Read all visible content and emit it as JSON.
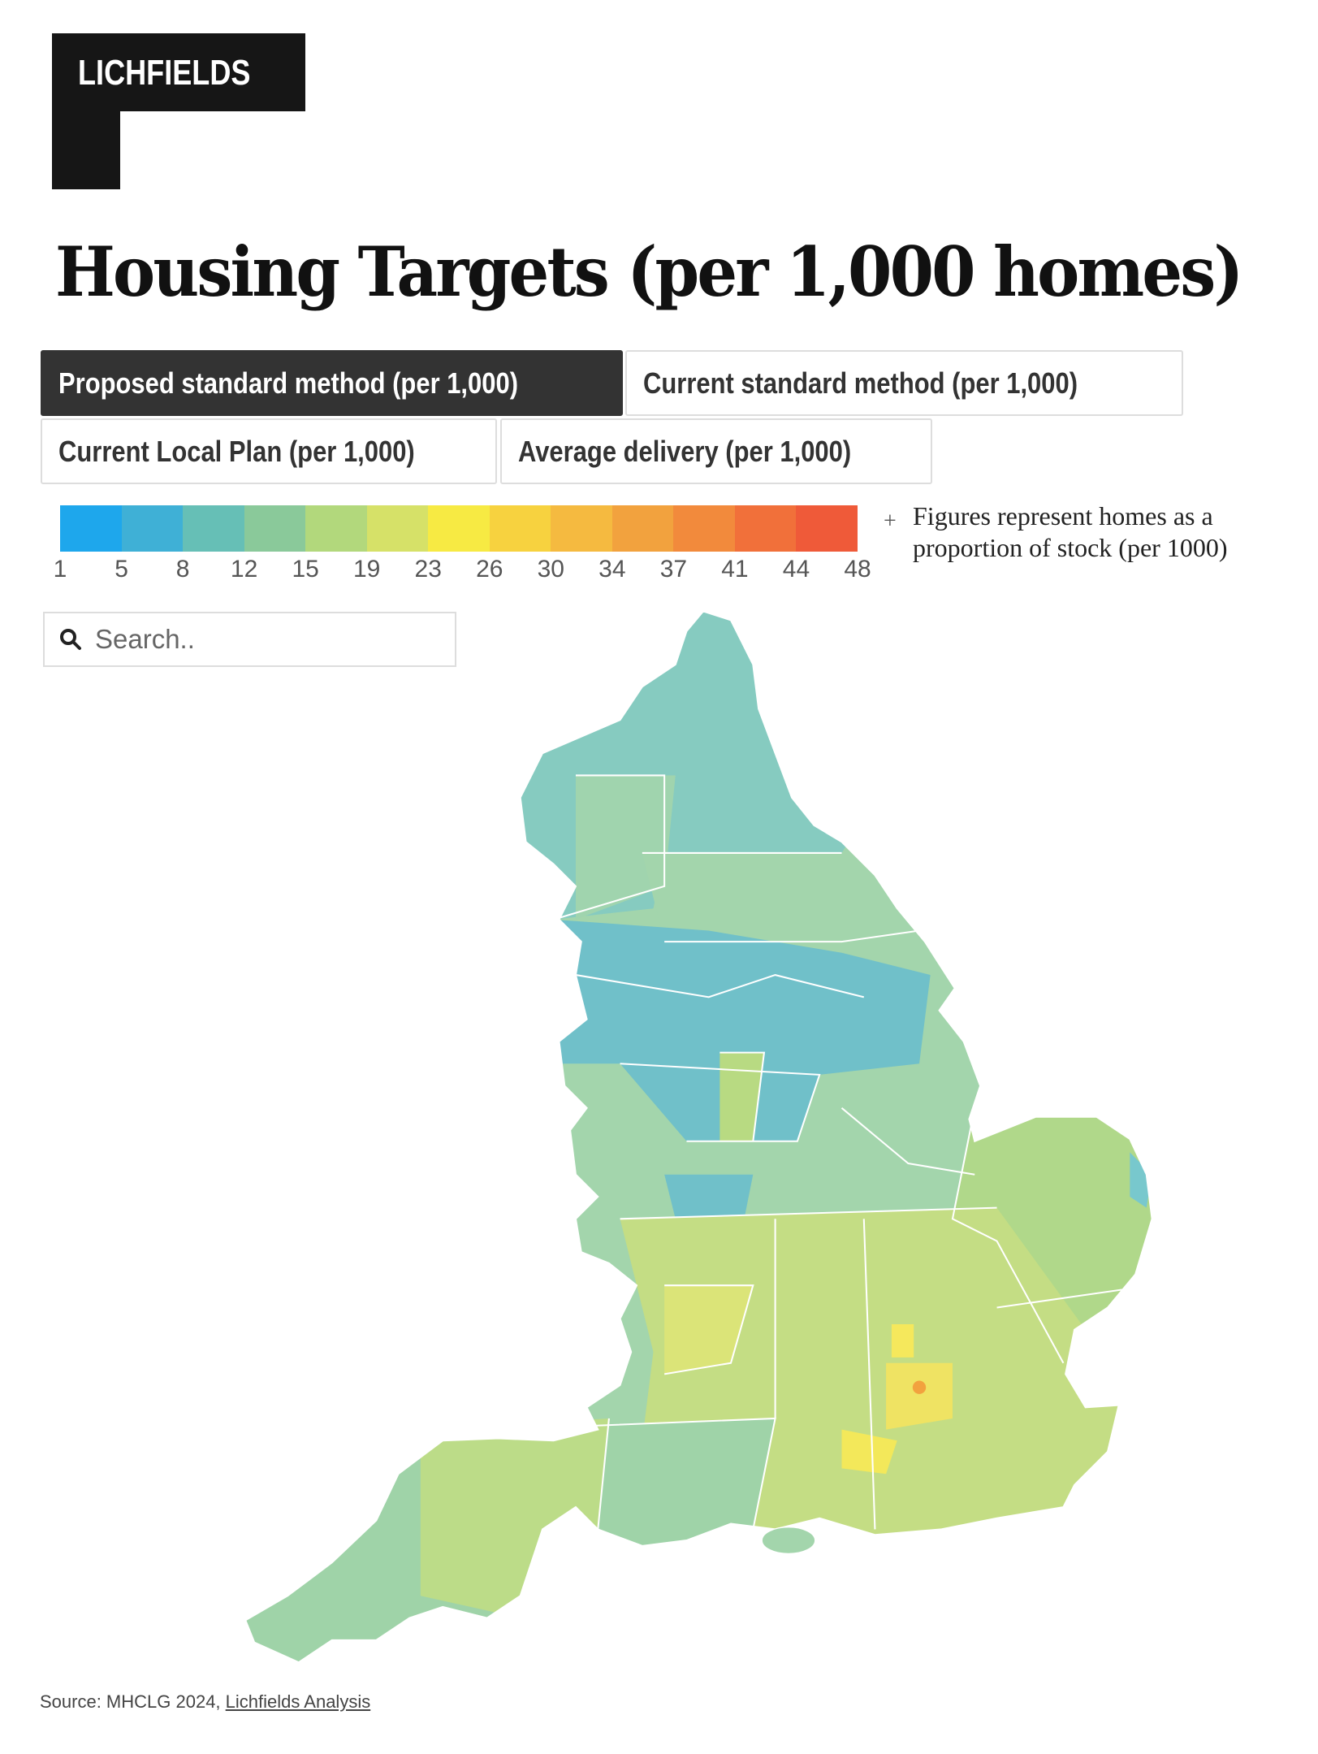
{
  "logo": {
    "text": "LICHFIELDS"
  },
  "title": "Housing Targets (per 1,000 homes)",
  "tabs": [
    {
      "label": "Proposed standard method (per 1,000)",
      "active": true
    },
    {
      "label": "Current standard method (per 1,000)",
      "active": false
    },
    {
      "label": "Current Local Plan (per 1,000)",
      "active": false
    },
    {
      "label": "Average delivery (per 1,000)",
      "active": false
    }
  ],
  "legend": {
    "ticks": [
      "1",
      "5",
      "8",
      "12",
      "15",
      "19",
      "23",
      "26",
      "30",
      "34",
      "37",
      "41",
      "44",
      "48"
    ],
    "colors": [
      "#1ea7ec",
      "#3fb0d6",
      "#66bfb6",
      "#8ac99a",
      "#b2d87c",
      "#d6e168",
      "#f7ea43",
      "#f7d23f",
      "#f5ba40",
      "#f2a23e",
      "#f28a3c",
      "#f1703a",
      "#ef5a39"
    ],
    "note_icon": "plus",
    "note": "Figures represent homes as a proportion of stock (per 1000)"
  },
  "search": {
    "placeholder": "Search..",
    "value": "",
    "icon": "search-icon"
  },
  "map": {
    "region": "England local authorities",
    "colors": {
      "north": "#86cbc0",
      "northwest_urban": "#6ec0cc",
      "midlands": "#a3d5ac",
      "southwest": "#9fd3a8",
      "southeast": "#c9df85",
      "london": "#f5e85c",
      "hotspot": "#f2a23e"
    }
  },
  "source": {
    "prefix": "Source: MHCLG 2024, ",
    "link": "Lichfields Analysis"
  }
}
